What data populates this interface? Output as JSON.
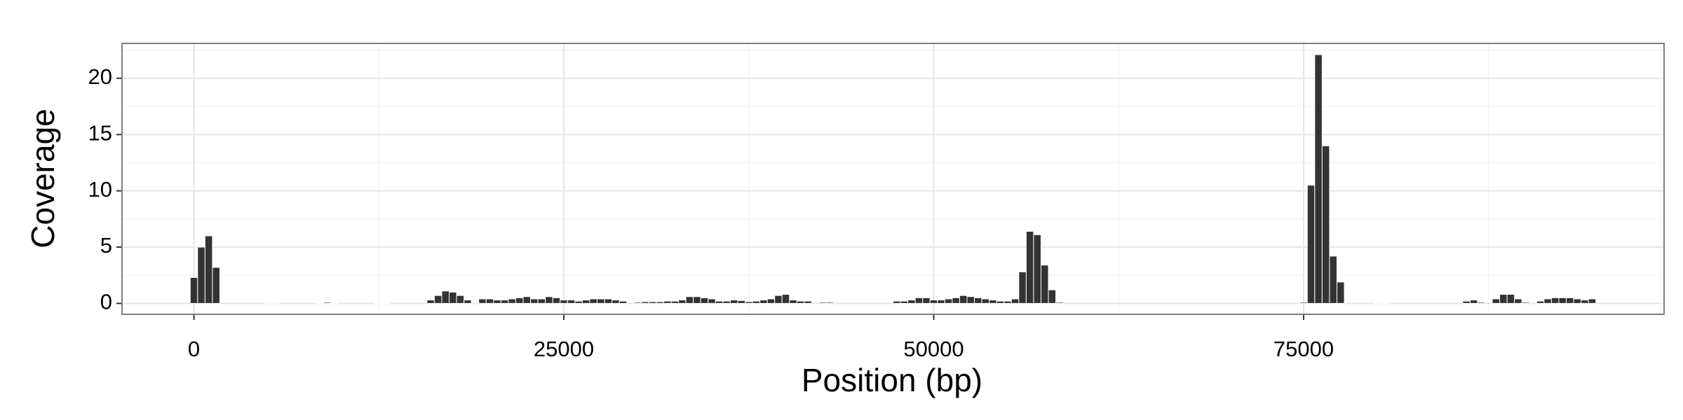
{
  "chart_data": {
    "type": "bar",
    "xlabel": "Position (bp)",
    "ylabel": "Coverage",
    "x": [
      0,
      500,
      1000,
      1500,
      5000,
      5500,
      8500,
      9000,
      9500,
      12500,
      13000,
      16000,
      16500,
      17000,
      17500,
      18000,
      18500,
      19500,
      20000,
      20500,
      21000,
      21500,
      22000,
      22500,
      23000,
      23500,
      24000,
      24500,
      25000,
      25500,
      26000,
      26500,
      27000,
      27500,
      28000,
      28500,
      29000,
      30000,
      30500,
      31000,
      31500,
      32000,
      32500,
      33000,
      33500,
      34000,
      34500,
      35000,
      35500,
      36000,
      36500,
      37000,
      37500,
      38000,
      38500,
      39000,
      39500,
      40000,
      40500,
      41000,
      41500,
      42500,
      43000,
      47500,
      48000,
      48500,
      49000,
      49500,
      50000,
      50500,
      51000,
      51500,
      52000,
      52500,
      53000,
      53500,
      54000,
      54500,
      55000,
      55500,
      56000,
      56500,
      57000,
      57500,
      58000,
      58500,
      75000,
      75500,
      76000,
      76500,
      77000,
      77500,
      80000,
      80500,
      86000,
      86500,
      87000,
      88000,
      88500,
      89000,
      89500,
      90000,
      91000,
      91500,
      92000,
      92500,
      93000,
      93500,
      94000,
      94500
    ],
    "values": [
      2.3,
      5.0,
      6.0,
      3.2,
      0.05,
      0.05,
      0.05,
      0.1,
      0.05,
      0.05,
      0.05,
      0.3,
      0.7,
      1.1,
      1.0,
      0.7,
      0.3,
      0.4,
      0.4,
      0.3,
      0.3,
      0.4,
      0.5,
      0.6,
      0.4,
      0.4,
      0.6,
      0.5,
      0.3,
      0.3,
      0.2,
      0.3,
      0.4,
      0.4,
      0.4,
      0.3,
      0.2,
      0.1,
      0.15,
      0.15,
      0.15,
      0.2,
      0.2,
      0.3,
      0.6,
      0.6,
      0.5,
      0.4,
      0.2,
      0.2,
      0.3,
      0.25,
      0.15,
      0.2,
      0.3,
      0.4,
      0.7,
      0.8,
      0.3,
      0.2,
      0.2,
      0.1,
      0.1,
      0.2,
      0.2,
      0.3,
      0.5,
      0.5,
      0.3,
      0.3,
      0.4,
      0.5,
      0.7,
      0.6,
      0.5,
      0.4,
      0.3,
      0.2,
      0.2,
      0.4,
      2.8,
      6.4,
      6.1,
      3.4,
      1.2,
      0.1,
      0.1,
      10.5,
      22.1,
      14.0,
      4.2,
      1.9,
      0.05,
      0.05,
      0.2,
      0.3,
      0.1,
      0.4,
      0.8,
      0.8,
      0.4,
      0.1,
      0.2,
      0.4,
      0.5,
      0.5,
      0.5,
      0.4,
      0.3,
      0.4
    ],
    "color": "#333333",
    "xlim": [
      -4860,
      99360
    ],
    "xticks": [
      0,
      25000,
      50000,
      75000
    ],
    "ylim": [
      -0.97,
      23.1
    ],
    "yticks": [
      0,
      5,
      10,
      15,
      20
    ],
    "grid": true
  }
}
